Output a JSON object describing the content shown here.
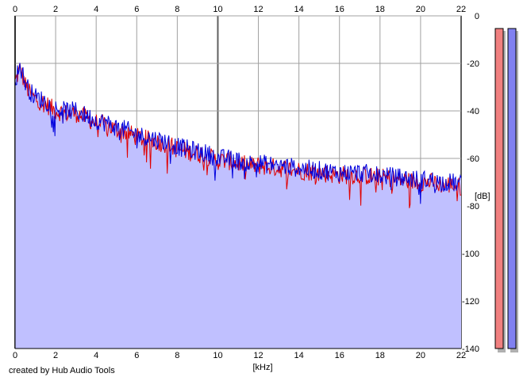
{
  "chart_data": {
    "type": "area",
    "xlabel": "[kHz]",
    "ylabel": "[dB]",
    "xlim": [
      0,
      22
    ],
    "ylim": [
      -140,
      0
    ],
    "x_ticks": [
      0,
      2,
      4,
      6,
      8,
      10,
      12,
      14,
      16,
      18,
      20,
      22
    ],
    "y_ticks": [
      0,
      -20,
      -40,
      -60,
      -80,
      -100,
      -120,
      -140
    ],
    "grid": true,
    "series": [
      {
        "color": "#e00000",
        "x": [
          0,
          0.25,
          0.5,
          0.75,
          1,
          1.5,
          2,
          2.5,
          3,
          3.5,
          4,
          4.5,
          5,
          5.5,
          6,
          6.5,
          7,
          7.5,
          8,
          8.5,
          9,
          9.5,
          10,
          10.5,
          11,
          11.5,
          12,
          13,
          14,
          15,
          16,
          17,
          18,
          19,
          20,
          20.5,
          21,
          21.5,
          22
        ],
        "values": [
          -28,
          -22,
          -29,
          -33,
          -35,
          -37,
          -40,
          -41,
          -41,
          -43,
          -45,
          -46,
          -48,
          -49,
          -51,
          -52,
          -53,
          -54,
          -56,
          -57,
          -58,
          -59,
          -61,
          -61,
          -62,
          -63,
          -63,
          -64,
          -65,
          -66,
          -67,
          -67,
          -68,
          -69,
          -70,
          -70,
          -71,
          -71,
          -72
        ]
      },
      {
        "color": "#0000dd",
        "x": [
          0,
          0.25,
          0.5,
          0.75,
          1,
          1.5,
          2,
          2.5,
          3,
          3.5,
          4,
          4.5,
          5,
          5.5,
          6,
          6.5,
          7,
          7.5,
          8,
          8.5,
          9,
          9.5,
          10,
          10.5,
          11,
          11.5,
          12,
          13,
          14,
          15,
          16,
          17,
          18,
          19,
          20,
          20.5,
          21,
          21.5,
          22
        ],
        "values": [
          -27,
          -21,
          -28,
          -32,
          -34,
          -36,
          -39,
          -40,
          -40,
          -42,
          -44,
          -45,
          -47,
          -48,
          -50,
          -51,
          -52,
          -53,
          -55,
          -56,
          -57,
          -58,
          -60,
          -60,
          -61,
          -62,
          -62,
          -63,
          -64,
          -65,
          -66,
          -66,
          -67,
          -68,
          -69,
          -69,
          -70,
          -70,
          -71
        ]
      }
    ],
    "fill_color": "#c0c0ff"
  },
  "meters": [
    {
      "color": "#f08080"
    },
    {
      "color": "#8080f0"
    }
  ],
  "credit": "created by Hub Audio Tools"
}
